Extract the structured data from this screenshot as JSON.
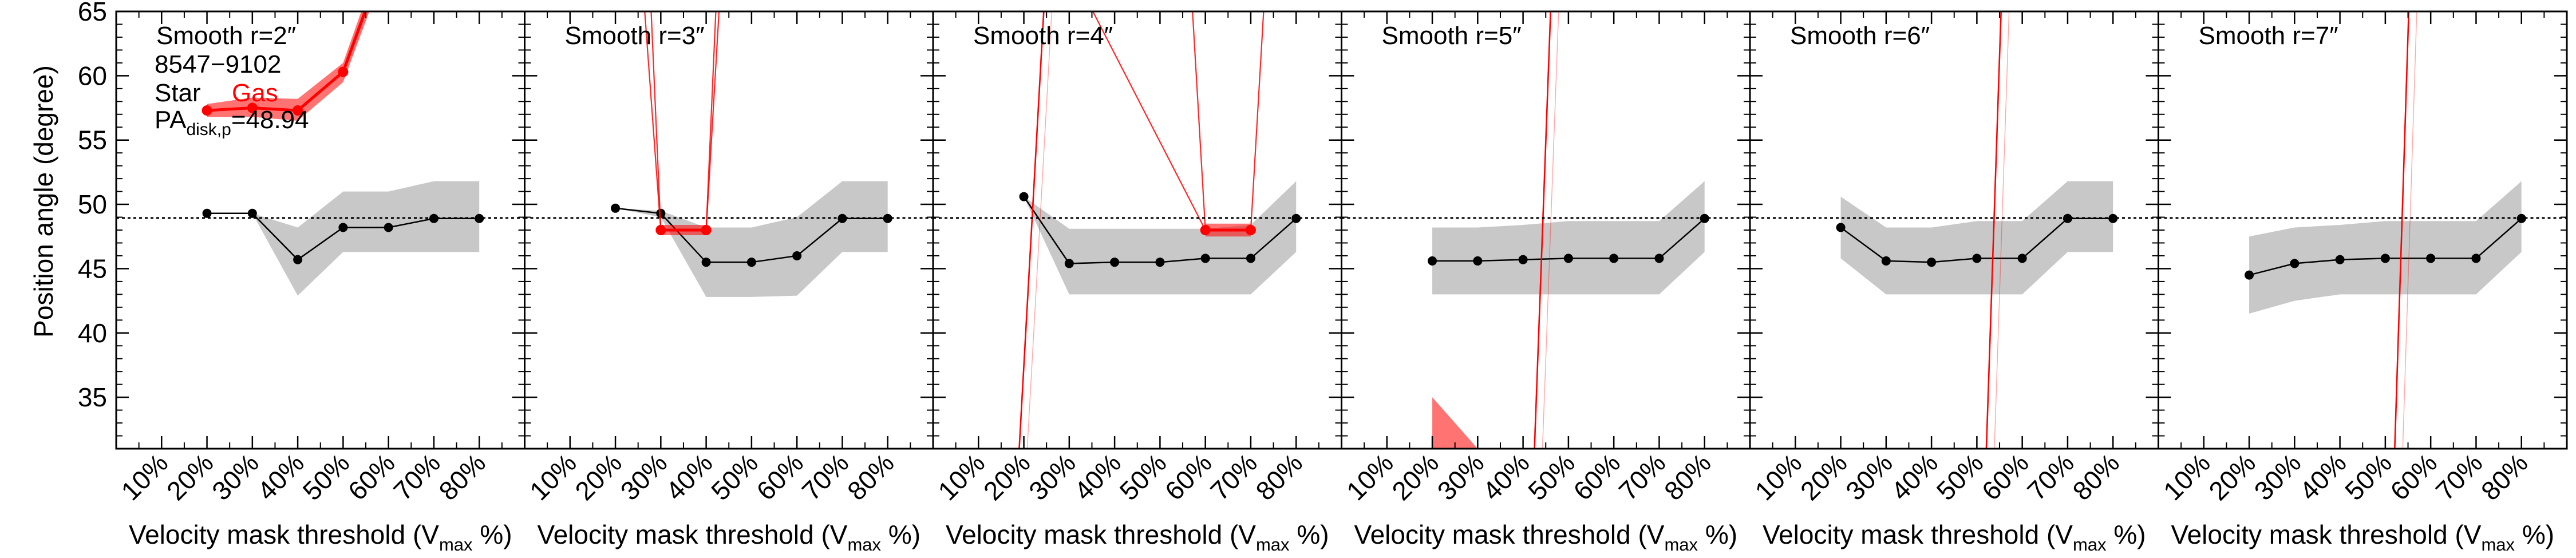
{
  "figure": {
    "ylabel": "Position angle (degree)",
    "xlabel_main": "Velocity mask threshold (V",
    "xlabel_sub": "max",
    "xlabel_tail": " %)",
    "pa_disk_value": 48.94,
    "colors": {
      "star": "#000000",
      "gas": "#ff0000",
      "band": "#c8c8c8"
    }
  },
  "legend": {
    "object_id": "8547−9102",
    "star_label": "Star",
    "gas_label": "Gas",
    "pa_main": "PA",
    "pa_sub": "disk,p",
    "pa_tail": "=48.94"
  },
  "chart_data": [
    {
      "type": "line",
      "title": "Smooth r=2″",
      "xlabel": "Velocity mask threshold (Vmax %)",
      "ylabel": "Position angle (degree)",
      "x_ticks": [
        "10%",
        "20%",
        "30%",
        "40%",
        "50%",
        "60%",
        "70%",
        "80%"
      ],
      "ylim": [
        31,
        65
      ],
      "y_ticks": [
        35,
        40,
        45,
        50,
        55,
        60,
        65
      ],
      "hline": 48.94,
      "series": [
        {
          "name": "Star",
          "x": [
            20,
            30,
            40,
            50,
            60,
            70,
            80
          ],
          "y": [
            49.3,
            49.3,
            45.7,
            48.2,
            48.2,
            48.9,
            48.9
          ],
          "band_low": [
            49.3,
            49.3,
            42.9,
            46.3,
            46.3,
            46.3,
            46.3
          ],
          "band_high": [
            49.3,
            49.3,
            48.2,
            51.0,
            51.0,
            51.8,
            51.8
          ]
        },
        {
          "name": "Gas",
          "x": [
            20,
            30,
            40,
            50,
            60
          ],
          "y": [
            57.3,
            57.5,
            57.3,
            60.3,
            70.0
          ],
          "band_low": [
            56.8,
            56.8,
            56.5,
            59.5,
            69.0
          ],
          "band_high": [
            57.8,
            58.3,
            58.2,
            61.0,
            71.0
          ]
        }
      ]
    },
    {
      "type": "line",
      "title": "Smooth r=3″",
      "x_ticks": [
        "10%",
        "20%",
        "30%",
        "40%",
        "50%",
        "60%",
        "70%",
        "80%"
      ],
      "ylim": [
        31,
        65
      ],
      "y_ticks": [
        35,
        40,
        45,
        50,
        55,
        60,
        65
      ],
      "hline": 48.94,
      "series": [
        {
          "name": "Star",
          "x": [
            20,
            30,
            40,
            50,
            60,
            70,
            80
          ],
          "y": [
            49.7,
            49.3,
            45.5,
            45.5,
            46.0,
            48.9,
            48.9
          ],
          "band_low": [
            49.7,
            49.0,
            42.8,
            42.8,
            42.9,
            46.3,
            46.3
          ],
          "band_high": [
            49.7,
            49.5,
            48.2,
            48.2,
            49.0,
            51.8,
            51.8
          ]
        },
        {
          "name": "Gas",
          "x": [
            30,
            40
          ],
          "y": [
            48.0,
            48.0
          ],
          "band_low": [
            47.6,
            47.6
          ],
          "band_high": [
            48.4,
            48.4
          ],
          "spikes": [
            [
              25,
              72
            ],
            [
              27,
              72
            ],
            [
              44,
              72
            ],
            [
              43,
              72
            ]
          ]
        }
      ]
    },
    {
      "type": "line",
      "title": "Smooth r=4″",
      "x_ticks": [
        "10%",
        "20%",
        "30%",
        "40%",
        "50%",
        "60%",
        "70%",
        "80%"
      ],
      "ylim": [
        31,
        65
      ],
      "y_ticks": [
        35,
        40,
        45,
        50,
        55,
        60,
        65
      ],
      "hline": 48.94,
      "series": [
        {
          "name": "Star",
          "x": [
            20,
            30,
            40,
            50,
            60,
            70,
            80
          ],
          "y": [
            50.6,
            45.4,
            45.5,
            45.5,
            45.8,
            45.8,
            48.9
          ],
          "band_low": [
            50.6,
            43.0,
            43.0,
            43.0,
            43.0,
            43.0,
            46.3
          ],
          "band_high": [
            50.6,
            48.1,
            48.1,
            48.1,
            48.1,
            48.4,
            51.8
          ]
        },
        {
          "name": "Gas",
          "x": [
            60,
            70
          ],
          "y": [
            48.0,
            48.0
          ],
          "band_low": [
            47.5,
            47.5
          ],
          "band_high": [
            48.5,
            48.5
          ],
          "spikes": [
            [
              56,
              72
            ],
            [
              74,
              72
            ],
            [
              25,
              72
            ]
          ],
          "steep_line": [
            [
              18.5,
              28
            ],
            [
              25.5,
              72
            ]
          ]
        }
      ]
    },
    {
      "type": "line",
      "title": "Smooth r=5″",
      "x_ticks": [
        "10%",
        "20%",
        "30%",
        "40%",
        "50%",
        "60%",
        "70%",
        "80%"
      ],
      "ylim": [
        31,
        65
      ],
      "y_ticks": [
        35,
        40,
        45,
        50,
        55,
        60,
        65
      ],
      "hline": 48.94,
      "series": [
        {
          "name": "Star",
          "x": [
            20,
            30,
            40,
            50,
            60,
            70,
            80
          ],
          "y": [
            45.6,
            45.6,
            45.7,
            45.8,
            45.8,
            45.8,
            48.9
          ],
          "band_low": [
            43.0,
            43.0,
            43.0,
            43.0,
            43.0,
            43.0,
            46.3
          ],
          "band_high": [
            48.2,
            48.2,
            48.4,
            48.7,
            48.7,
            48.7,
            51.8
          ]
        },
        {
          "name": "Gas",
          "x": [],
          "y": [],
          "steep_line": [
            [
              42.2,
              28
            ],
            [
              46.8,
              72
            ]
          ],
          "wedge": [
            [
              20,
              35.0
            ],
            [
              20,
              31.0
            ],
            [
              30,
              31.0
            ]
          ]
        }
      ]
    },
    {
      "type": "line",
      "title": "Smooth r=6″",
      "x_ticks": [
        "10%",
        "20%",
        "30%",
        "40%",
        "50%",
        "60%",
        "70%",
        "80%"
      ],
      "ylim": [
        31,
        65
      ],
      "y_ticks": [
        35,
        40,
        45,
        50,
        55,
        60,
        65
      ],
      "hline": 48.94,
      "series": [
        {
          "name": "Star",
          "x": [
            20,
            30,
            40,
            50,
            60,
            70,
            80
          ],
          "y": [
            48.2,
            45.6,
            45.5,
            45.8,
            45.8,
            48.9,
            48.9
          ],
          "band_low": [
            45.8,
            43.0,
            43.0,
            43.0,
            43.0,
            46.3,
            46.3
          ],
          "band_high": [
            50.6,
            48.2,
            48.2,
            48.7,
            48.7,
            51.8,
            51.8
          ]
        },
        {
          "name": "Gas",
          "x": [],
          "y": [],
          "steep_line": [
            [
              51.8,
              28
            ],
            [
              56.0,
              72
            ]
          ]
        }
      ]
    },
    {
      "type": "line",
      "title": "Smooth r=7″",
      "x_ticks": [
        "10%",
        "20%",
        "30%",
        "40%",
        "50%",
        "60%",
        "70%",
        "80%"
      ],
      "ylim": [
        31,
        65
      ],
      "y_ticks": [
        35,
        40,
        45,
        50,
        55,
        60,
        65
      ],
      "hline": 48.94,
      "series": [
        {
          "name": "Star",
          "x": [
            20,
            30,
            40,
            50,
            60,
            70,
            80
          ],
          "y": [
            44.5,
            45.4,
            45.7,
            45.8,
            45.8,
            45.8,
            48.9
          ],
          "band_low": [
            41.5,
            42.5,
            43.0,
            43.0,
            43.0,
            43.0,
            46.3
          ],
          "band_high": [
            47.5,
            48.2,
            48.4,
            48.7,
            48.7,
            48.7,
            51.8
          ]
        },
        {
          "name": "Gas",
          "x": [],
          "y": [],
          "steep_line": [
            [
              51.8,
              28
            ],
            [
              55.8,
              72
            ]
          ]
        }
      ]
    }
  ]
}
